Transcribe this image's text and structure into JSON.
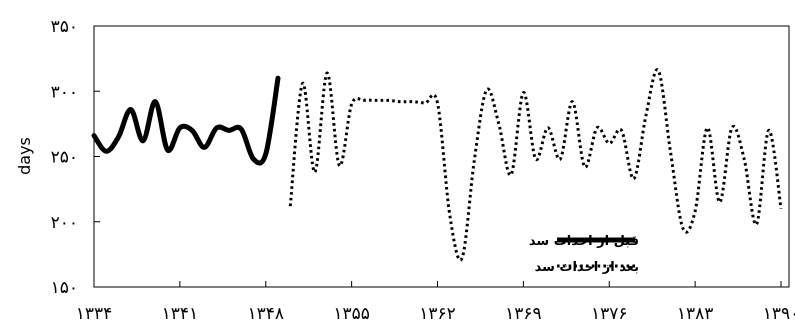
{
  "chart_data": {
    "type": "line",
    "ylabel": "days",
    "ylim": [
      150,
      350
    ],
    "xlim": [
      1334,
      1390
    ],
    "x_ticks": [
      {
        "value": 1334,
        "label": "۱۳۳۴"
      },
      {
        "value": 1341,
        "label": "۱۳۴۱"
      },
      {
        "value": 1348,
        "label": "۱۳۴۸"
      },
      {
        "value": 1355,
        "label": "۱۳۵۵"
      },
      {
        "value": 1362,
        "label": "۱۳۶۲"
      },
      {
        "value": 1369,
        "label": "۱۳۶۹"
      },
      {
        "value": 1376,
        "label": "۱۳۷۶"
      },
      {
        "value": 1383,
        "label": "۱۳۸۳"
      },
      {
        "value": 1390,
        "label": "۱۳۹۰"
      }
    ],
    "y_ticks": [
      {
        "value": 150,
        "label": "۱۵۰"
      },
      {
        "value": 200,
        "label": "۲۰۰"
      },
      {
        "value": 250,
        "label": "۲۵۰"
      },
      {
        "value": 300,
        "label": "۳۰۰"
      },
      {
        "value": 350,
        "label": "۳۵۰"
      }
    ],
    "grid": false,
    "legend_position": "bottom-right",
    "series": [
      {
        "name": "قبل از احداث سد",
        "style": "solid",
        "color": "#000000",
        "x": [
          1334,
          1335,
          1336,
          1337,
          1338,
          1339,
          1340,
          1341,
          1342,
          1343,
          1344,
          1345,
          1346,
          1347,
          1348,
          1349
        ],
        "y": [
          266,
          254,
          265,
          286,
          262,
          292,
          255,
          272,
          270,
          257,
          272,
          270,
          271,
          248,
          252,
          310
        ]
      },
      {
        "name": "بعد از احداث سد",
        "style": "dotted",
        "color": "#000000",
        "x": [
          1350,
          1351,
          1352,
          1353,
          1354,
          1355,
          1356,
          1357,
          1358,
          1359,
          1360,
          1361,
          1362,
          1363,
          1364,
          1365,
          1366,
          1367,
          1368,
          1369,
          1370,
          1371,
          1372,
          1373,
          1374,
          1375,
          1376,
          1377,
          1378,
          1379,
          1380,
          1381,
          1382,
          1383,
          1384,
          1385,
          1386,
          1387,
          1388,
          1389,
          1390
        ],
        "y": [
          212,
          306,
          238,
          314,
          243,
          290,
          293,
          293,
          293,
          292,
          292,
          291,
          291,
          205,
          172,
          247,
          301,
          275,
          236,
          299,
          248,
          272,
          248,
          292,
          242,
          272,
          260,
          270,
          233,
          282,
          316,
          253,
          195,
          208,
          272,
          215,
          272,
          248,
          198,
          270,
          210
        ]
      }
    ]
  }
}
